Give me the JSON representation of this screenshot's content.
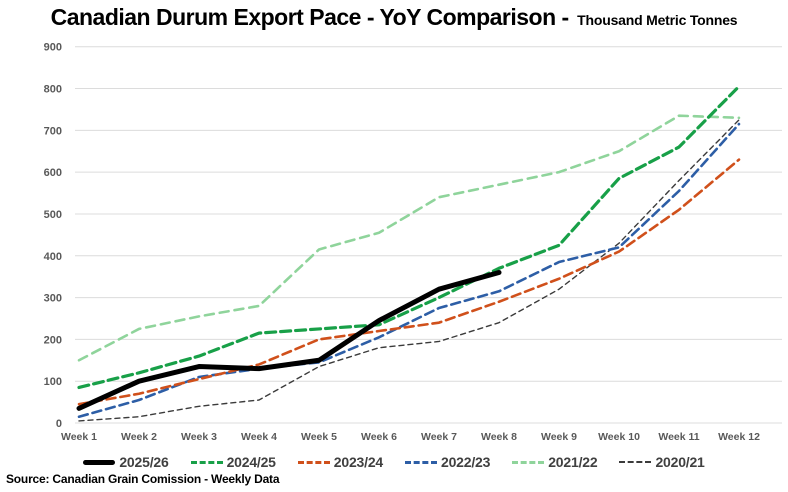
{
  "title": {
    "main": "Canadian Durum Export Pace - YoY Comparison -",
    "unit": "Thousand Metric Tonnes"
  },
  "source": "Source: Canadian Grain Comission - Weekly Data",
  "colors": {
    "grid": "#dcdcdc",
    "axis_label": "#595959",
    "legend_label": "#404040",
    "background": "#ffffff"
  },
  "chart_data": {
    "type": "line",
    "title": "Canadian Durum Export Pace - YoY Comparison",
    "subtitle": "Thousand Metric Tonnes",
    "categories": [
      "Week 1",
      "Week 2",
      "Week 3",
      "Week 4",
      "Week 5",
      "Week 6",
      "Week 7",
      "Week 8",
      "Week 9",
      "Week 10",
      "Week 11",
      "Week 12"
    ],
    "ylim": [
      0,
      900
    ],
    "y_ticks": [
      0,
      100,
      200,
      300,
      400,
      500,
      600,
      700,
      800,
      900
    ],
    "grid": "horizontal-only",
    "legend_position": "bottom",
    "series": [
      {
        "name": "2025/26",
        "color": "#000000",
        "style": "solid",
        "width": 5,
        "dash": "",
        "values": [
          35,
          100,
          135,
          130,
          150,
          245,
          320,
          360
        ]
      },
      {
        "name": "2024/25",
        "color": "#18a048",
        "style": "dashed",
        "width": 3.2,
        "dash": "10 5",
        "values": [
          85,
          120,
          160,
          215,
          225,
          235,
          300,
          370,
          425,
          585,
          660,
          805
        ]
      },
      {
        "name": "2023/24",
        "color": "#d0501b",
        "style": "dashed",
        "width": 2.6,
        "dash": "9 5",
        "values": [
          45,
          70,
          105,
          140,
          200,
          220,
          240,
          290,
          345,
          410,
          510,
          630
        ]
      },
      {
        "name": "2022/23",
        "color": "#2d5ea6",
        "style": "dashed",
        "width": 2.6,
        "dash": "9 5",
        "values": [
          15,
          55,
          110,
          130,
          145,
          205,
          275,
          315,
          385,
          420,
          555,
          715
        ]
      },
      {
        "name": "2021/22",
        "color": "#8fd49b",
        "style": "dashed",
        "width": 2.6,
        "dash": "9 6",
        "values": [
          150,
          225,
          255,
          280,
          415,
          455,
          540,
          570,
          600,
          650,
          735,
          730
        ]
      },
      {
        "name": "2020/21",
        "color": "#3b3b3b",
        "style": "dashed-fine",
        "width": 1.4,
        "dash": "5 4",
        "values": [
          5,
          15,
          40,
          55,
          135,
          180,
          195,
          240,
          320,
          430,
          580,
          725
        ]
      }
    ]
  }
}
